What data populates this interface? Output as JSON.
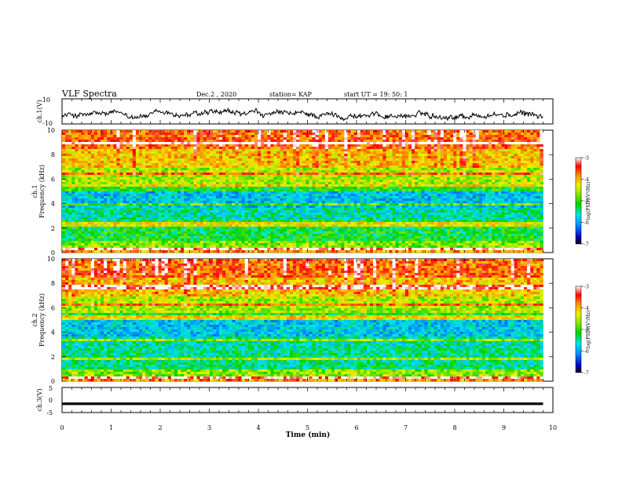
{
  "header": {
    "title": "VLF Spectra",
    "date": "Dec.2 , 2020",
    "station": "station= KAP",
    "start": "start UT = 19: 50: 1"
  },
  "chart_data": [
    {
      "type": "line",
      "ylabel": "ch.1(V)",
      "xlim": [
        0,
        10
      ],
      "ylim": [
        -10,
        10
      ],
      "yticks": [
        "10",
        "-10"
      ],
      "trace": "noisy waveform around -3 V spanning 0 to 9.8 min"
    },
    {
      "type": "heatmap",
      "ylabel": "ch.1\nFrequency (kHz)",
      "xlim": [
        0,
        10
      ],
      "ylim": [
        0,
        10
      ],
      "yticks": [
        "0",
        "2",
        "4",
        "6",
        "8",
        "10"
      ],
      "data_end_min": 9.8,
      "colorbar": {
        "label": "log(PSD)(V²/Hz)",
        "range": [
          -7,
          -3
        ],
        "ticks": [
          "-3",
          "-4",
          "-5",
          "-6",
          "-7"
        ]
      }
    },
    {
      "type": "heatmap",
      "ylabel": "ch.2\nFrequency (kHz)",
      "xlim": [
        0,
        10
      ],
      "ylim": [
        0,
        10
      ],
      "yticks": [
        "0",
        "2",
        "4",
        "6",
        "8",
        "10"
      ],
      "data_end_min": 9.8,
      "colorbar": {
        "label": "log(PSD)(V²/Hz)",
        "range": [
          -7,
          -3
        ],
        "ticks": [
          "-3",
          "-4",
          "-5",
          "-6",
          "-7"
        ]
      }
    },
    {
      "type": "line",
      "ylabel": "ch.3(V)",
      "xlim": [
        0,
        10
      ],
      "ylim": [
        -5,
        5
      ],
      "yticks": [
        "5",
        "0",
        "-5"
      ],
      "trace": "thick flat band near -1.5 V spanning 0 to 9.8 min"
    }
  ],
  "xaxis": {
    "label": "Time (min)",
    "ticks": [
      "0",
      "1",
      "2",
      "3",
      "4",
      "5",
      "6",
      "7",
      "8",
      "9",
      "10"
    ]
  }
}
